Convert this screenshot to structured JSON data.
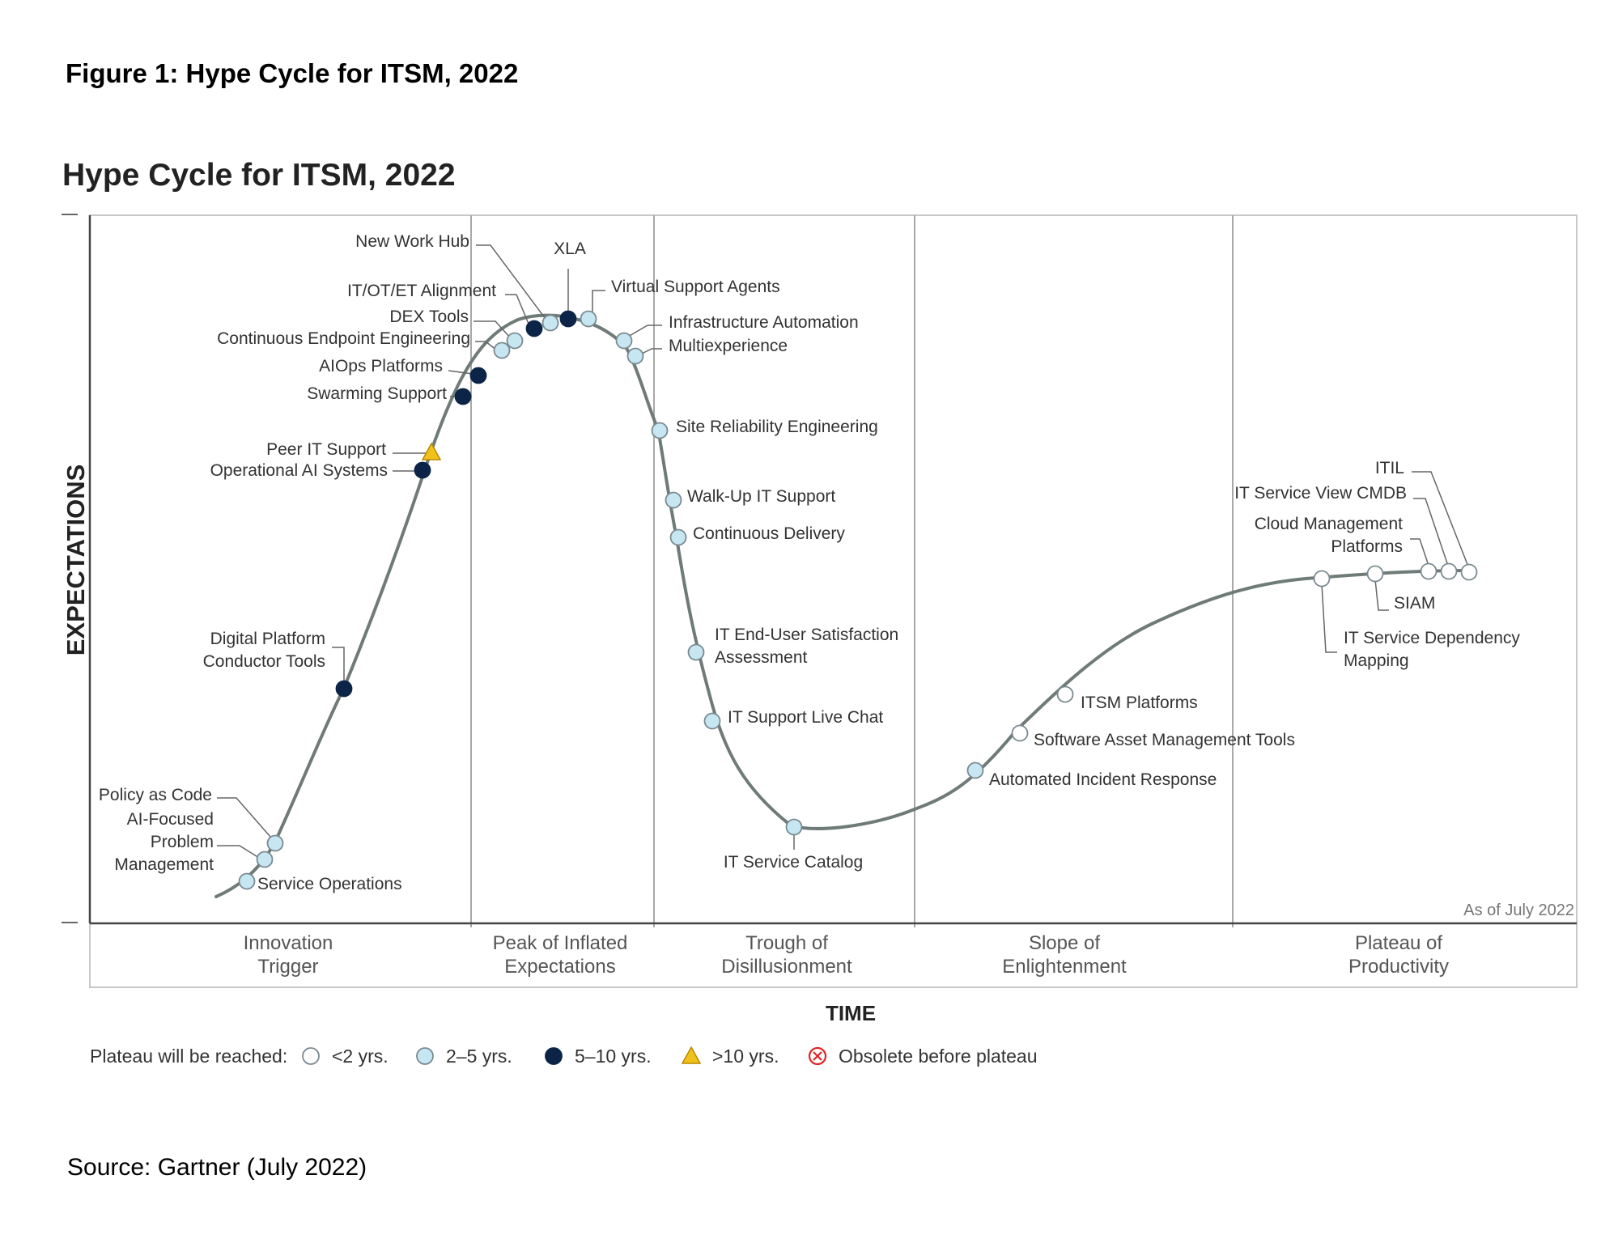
{
  "figure_caption": "Figure 1: Hype Cycle for ITSM, 2022",
  "source": "Source: Gartner (July 2022)",
  "colors": {
    "lt2": "#ffffff",
    "2to5": "#c6e6f2",
    "5to10": "#0b2447",
    "gt10": "#f1c11b",
    "obsolete": "#e02424",
    "curve": "#6f7b78",
    "frame": "#c8c8c8"
  },
  "chart_data": {
    "type": "hype-cycle",
    "title": "Hype Cycle for ITSM, 2022",
    "ylabel": "EXPECTATIONS",
    "xlabel": "TIME",
    "as_of": "As of July 2022",
    "phases": [
      {
        "line1": "Innovation",
        "line2": "Trigger"
      },
      {
        "line1": "Peak of Inflated",
        "line2": "Expectations"
      },
      {
        "line1": "Trough of",
        "line2": "Disillusionment"
      },
      {
        "line1": "Slope of",
        "line2": "Enlightenment"
      },
      {
        "line1": "Plateau of",
        "line2": "Productivity"
      }
    ],
    "legend": {
      "title": "Plateau will be reached:",
      "items": [
        {
          "key": "lt2",
          "label": "<2 yrs."
        },
        {
          "key": "2to5",
          "label": "2–5 yrs."
        },
        {
          "key": "5to10",
          "label": "5–10 yrs."
        },
        {
          "key": "gt10",
          "label": ">10 yrs."
        },
        {
          "key": "obsolete",
          "label": "Obsolete before plateau"
        }
      ]
    },
    "technologies": [
      {
        "name": "Service Operations",
        "lines": [
          "Service Operations"
        ],
        "plateau": "2to5"
      },
      {
        "name": "AI-Focused Problem Management",
        "lines": [
          "AI-Focused",
          "Problem",
          "Management"
        ],
        "plateau": "2to5"
      },
      {
        "name": "Policy as Code",
        "lines": [
          "Policy as Code"
        ],
        "plateau": "2to5"
      },
      {
        "name": "Digital Platform Conductor Tools",
        "lines": [
          "Digital Platform",
          "Conductor Tools"
        ],
        "plateau": "5to10"
      },
      {
        "name": "Operational AI Systems",
        "lines": [
          "Operational AI Systems"
        ],
        "plateau": "5to10"
      },
      {
        "name": "Peer IT Support",
        "lines": [
          "Peer IT Support"
        ],
        "plateau": "gt10"
      },
      {
        "name": "Swarming Support",
        "lines": [
          "Swarming Support"
        ],
        "plateau": "5to10"
      },
      {
        "name": "AIOps Platforms",
        "lines": [
          "AIOps Platforms"
        ],
        "plateau": "5to10"
      },
      {
        "name": "Continuous Endpoint Engineering",
        "lines": [
          "Continuous Endpoint Engineering"
        ],
        "plateau": "2to5"
      },
      {
        "name": "DEX Tools",
        "lines": [
          "DEX Tools"
        ],
        "plateau": "2to5"
      },
      {
        "name": "IT/OT/ET Alignment",
        "lines": [
          "IT/OT/ET Alignment"
        ],
        "plateau": "5to10"
      },
      {
        "name": "New Work Hub",
        "lines": [
          "New Work Hub"
        ],
        "plateau": "2to5"
      },
      {
        "name": "XLA",
        "lines": [
          "XLA"
        ],
        "plateau": "5to10"
      },
      {
        "name": "Virtual Support Agents",
        "lines": [
          "Virtual Support Agents"
        ],
        "plateau": "2to5"
      },
      {
        "name": "Infrastructure Automation",
        "lines": [
          "Infrastructure Automation"
        ],
        "plateau": "2to5"
      },
      {
        "name": "Multiexperience",
        "lines": [
          "Multiexperience"
        ],
        "plateau": "2to5"
      },
      {
        "name": "Site Reliability Engineering",
        "lines": [
          "Site Reliability Engineering"
        ],
        "plateau": "2to5"
      },
      {
        "name": "Walk-Up IT Support",
        "lines": [
          "Walk-Up IT Support"
        ],
        "plateau": "2to5"
      },
      {
        "name": "Continuous Delivery",
        "lines": [
          "Continuous Delivery"
        ],
        "plateau": "2to5"
      },
      {
        "name": "IT End-User Satisfaction Assessment",
        "lines": [
          "IT End-User Satisfaction",
          "Assessment"
        ],
        "plateau": "2to5"
      },
      {
        "name": "IT Support Live Chat",
        "lines": [
          "IT Support Live Chat"
        ],
        "plateau": "2to5"
      },
      {
        "name": "IT Service Catalog",
        "lines": [
          "IT Service Catalog"
        ],
        "plateau": "2to5"
      },
      {
        "name": "Automated Incident Response",
        "lines": [
          "Automated Incident Response"
        ],
        "plateau": "2to5"
      },
      {
        "name": "Software Asset Management Tools",
        "lines": [
          "Software Asset Management Tools"
        ],
        "plateau": "lt2"
      },
      {
        "name": "ITSM Platforms",
        "lines": [
          "ITSM Platforms"
        ],
        "plateau": "lt2"
      },
      {
        "name": "IT Service Dependency Mapping",
        "lines": [
          "IT Service Dependency",
          "Mapping"
        ],
        "plateau": "lt2"
      },
      {
        "name": "SIAM",
        "lines": [
          "SIAM"
        ],
        "plateau": "lt2"
      },
      {
        "name": "Cloud Management Platforms",
        "lines": [
          "Cloud Management",
          "Platforms"
        ],
        "plateau": "lt2"
      },
      {
        "name": "IT Service View CMDB",
        "lines": [
          "IT Service View CMDB"
        ],
        "plateau": "lt2"
      },
      {
        "name": "ITIL",
        "lines": [
          "ITIL"
        ],
        "plateau": "lt2"
      }
    ]
  }
}
